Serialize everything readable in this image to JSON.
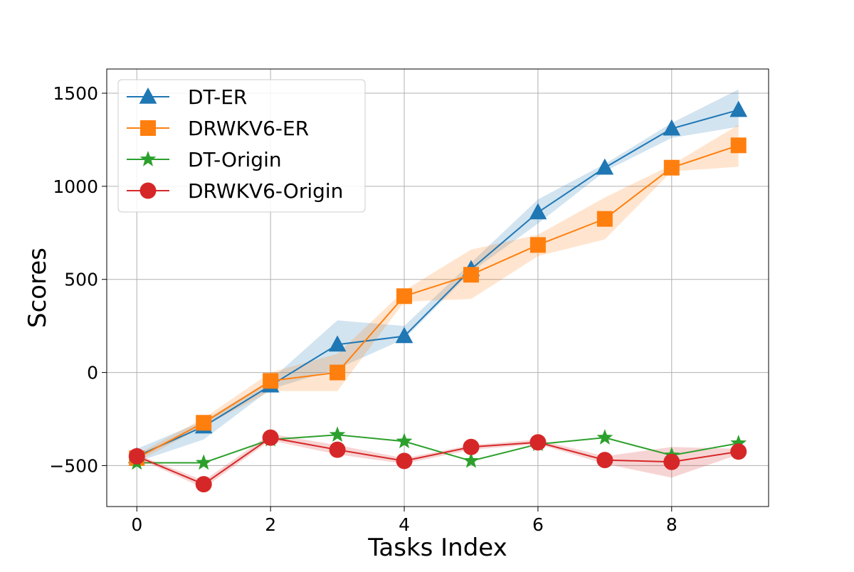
{
  "chart_data": {
    "type": "line",
    "title": "",
    "xlabel": "Tasks Index",
    "ylabel": "Scores",
    "xlim": [
      -0.45,
      9.45
    ],
    "ylim": [
      -720,
      1630
    ],
    "x_ticks": [
      0,
      2,
      4,
      6,
      8
    ],
    "y_ticks": [
      -500,
      0,
      500,
      1000,
      1500
    ],
    "x_tick_labels": [
      "0",
      "2",
      "4",
      "6",
      "8"
    ],
    "y_tick_labels": [
      "−500",
      "0",
      "500",
      "1000",
      "1500"
    ],
    "grid": true,
    "legend": "top-left",
    "x": [
      0,
      1,
      2,
      3,
      4,
      5,
      6,
      7,
      8,
      9
    ],
    "series": [
      {
        "name": "DT-ER",
        "color": "#1f77b4",
        "marker": "triangle",
        "values": [
          -450,
          -290,
          -70,
          150,
          195,
          555,
          860,
          1100,
          1310,
          1410
        ],
        "band_lower": [
          -480,
          -360,
          -90,
          20,
          180,
          540,
          800,
          1080,
          1260,
          1320
        ],
        "band_upper": [
          -410,
          -260,
          -40,
          280,
          250,
          590,
          930,
          1120,
          1340,
          1520
        ]
      },
      {
        "name": "DRWKV6-ER",
        "color": "#ff7f0e",
        "marker": "square",
        "values": [
          -460,
          -270,
          -45,
          0,
          410,
          525,
          685,
          825,
          1100,
          1220
        ],
        "band_lower": [
          -480,
          -290,
          -100,
          -100,
          380,
          395,
          625,
          715,
          1080,
          1105
        ],
        "band_upper": [
          -440,
          -245,
          0,
          100,
          440,
          660,
          740,
          940,
          1115,
          1330
        ]
      },
      {
        "name": "DT-Origin",
        "color": "#2ca02c",
        "marker": "star",
        "values": [
          -485,
          -485,
          -360,
          -335,
          -370,
          -475,
          -385,
          -350,
          -445,
          -380
        ],
        "band_lower": [],
        "band_upper": []
      },
      {
        "name": "DRWKV6-Origin",
        "color": "#d62728",
        "marker": "circle",
        "values": [
          -450,
          -600,
          -350,
          -415,
          -475,
          -400,
          -375,
          -470,
          -480,
          -425
        ],
        "band_lower": [
          -460,
          -620,
          -365,
          -440,
          -490,
          -415,
          -385,
          -490,
          -565,
          -440
        ],
        "band_upper": [
          -440,
          -580,
          -330,
          -390,
          -460,
          -390,
          -360,
          -450,
          -400,
          -410
        ]
      }
    ]
  }
}
